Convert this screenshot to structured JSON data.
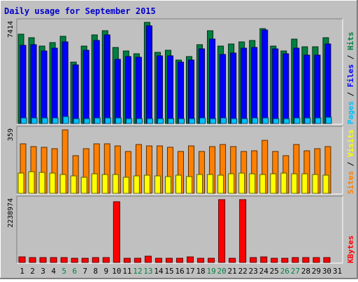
{
  "title": "Daily usage for September 2015",
  "colors": {
    "frame_bg": "#c0c0c0",
    "title": "#0000cc",
    "hits": "#008040",
    "files": "#0000ff",
    "pages": "#00c0ff",
    "visits": "#ff8000",
    "sites": "#ffff00",
    "kbytes": "#ff0000",
    "weekend_day": "#008040",
    "weekday": "#000000"
  },
  "chart_data": [
    {
      "type": "bar",
      "panel": "hits-files-pages",
      "title": "Pages / Files / Hits",
      "ylabel_parts": [
        "Pages",
        "Files",
        "Hits"
      ],
      "max_label": "7414",
      "ylim": [
        0,
        7414
      ],
      "categories": [
        "1",
        "2",
        "3",
        "4",
        "5",
        "6",
        "7",
        "8",
        "9",
        "10",
        "11",
        "12",
        "13",
        "14",
        "15",
        "16",
        "17",
        "18",
        "19",
        "20",
        "21",
        "22",
        "23",
        "24",
        "25",
        "26",
        "27",
        "28",
        "29",
        "30",
        "31"
      ],
      "series": [
        {
          "name": "Hits",
          "values": [
            6520,
            6300,
            5650,
            5920,
            6400,
            4480,
            5700,
            6470,
            6800,
            5550,
            5300,
            5100,
            7414,
            5200,
            5350,
            4650,
            4900,
            5800,
            6780,
            5700,
            5850,
            6000,
            6100,
            6950,
            5700,
            5300,
            6200,
            5620,
            5620,
            6310,
            0
          ]
        },
        {
          "name": "Files",
          "values": [
            5730,
            5760,
            5320,
            5520,
            5960,
            4290,
            5360,
            6060,
            6500,
            4720,
            4900,
            4850,
            7160,
            4960,
            4940,
            4500,
            4630,
            5460,
            6180,
            5050,
            5140,
            5500,
            5560,
            6870,
            5450,
            5090,
            5540,
            5030,
            5000,
            5850,
            0
          ]
        },
        {
          "name": "Pages",
          "values": [
            400,
            420,
            410,
            400,
            500,
            380,
            380,
            410,
            410,
            390,
            350,
            350,
            380,
            370,
            360,
            340,
            380,
            410,
            380,
            400,
            370,
            380,
            390,
            420,
            380,
            360,
            420,
            400,
            410,
            440,
            0
          ]
        }
      ]
    },
    {
      "type": "bar",
      "panel": "visits-sites",
      "title": "Sites / Visits",
      "ylabel_parts": [
        "Sites",
        "Visits"
      ],
      "max_label": "359",
      "ylim": [
        0,
        359
      ],
      "categories": [
        "1",
        "2",
        "3",
        "4",
        "5",
        "6",
        "7",
        "8",
        "9",
        "10",
        "11",
        "12",
        "13",
        "14",
        "15",
        "16",
        "17",
        "18",
        "19",
        "20",
        "21",
        "22",
        "23",
        "24",
        "25",
        "26",
        "27",
        "28",
        "29",
        "30",
        "31"
      ],
      "series": [
        {
          "name": "Visits",
          "values": [
            281,
            264,
            262,
            254,
            359,
            214,
            254,
            281,
            281,
            270,
            236,
            276,
            268,
            270,
            262,
            236,
            270,
            236,
            264,
            275,
            264,
            236,
            240,
            300,
            236,
            214,
            276,
            240,
            254,
            266,
            0
          ]
        },
        {
          "name": "Sites",
          "values": [
            116,
            124,
            120,
            116,
            108,
            100,
            90,
            112,
            108,
            106,
            92,
            100,
            102,
            100,
            94,
            102,
            96,
            108,
            108,
            102,
            110,
            114,
            112,
            108,
            112,
            114,
            110,
            112,
            108,
            104,
            0
          ]
        }
      ]
    },
    {
      "type": "bar",
      "panel": "kbytes",
      "title": "KBytes",
      "max_label": "2238974",
      "ylim": [
        0,
        2238974
      ],
      "categories": [
        "1",
        "2",
        "3",
        "4",
        "5",
        "6",
        "7",
        "8",
        "9",
        "10",
        "11",
        "12",
        "13",
        "14",
        "15",
        "16",
        "17",
        "18",
        "19",
        "20",
        "21",
        "22",
        "23",
        "24",
        "25",
        "26",
        "27",
        "28",
        "29",
        "30",
        "31"
      ],
      "series": [
        {
          "name": "KBytes",
          "values": [
            190000,
            165000,
            165000,
            175000,
            165000,
            150000,
            155000,
            175000,
            175000,
            2170000,
            145000,
            150000,
            225000,
            150000,
            150000,
            160000,
            190000,
            145000,
            155000,
            2238974,
            140000,
            2238974,
            165000,
            190000,
            160000,
            145000,
            180000,
            175000,
            165000,
            180000,
            0
          ]
        }
      ]
    }
  ],
  "days": [
    {
      "label": "1",
      "weekend": false
    },
    {
      "label": "2",
      "weekend": false
    },
    {
      "label": "3",
      "weekend": false
    },
    {
      "label": "4",
      "weekend": false
    },
    {
      "label": "5",
      "weekend": true
    },
    {
      "label": "6",
      "weekend": true
    },
    {
      "label": "7",
      "weekend": false
    },
    {
      "label": "8",
      "weekend": false
    },
    {
      "label": "9",
      "weekend": false
    },
    {
      "label": "10",
      "weekend": false
    },
    {
      "label": "11",
      "weekend": false
    },
    {
      "label": "12",
      "weekend": true
    },
    {
      "label": "13",
      "weekend": true
    },
    {
      "label": "14",
      "weekend": false
    },
    {
      "label": "15",
      "weekend": false
    },
    {
      "label": "16",
      "weekend": false
    },
    {
      "label": "17",
      "weekend": false
    },
    {
      "label": "18",
      "weekend": false
    },
    {
      "label": "19",
      "weekend": true
    },
    {
      "label": "20",
      "weekend": true
    },
    {
      "label": "21",
      "weekend": false
    },
    {
      "label": "22",
      "weekend": false
    },
    {
      "label": "23",
      "weekend": false
    },
    {
      "label": "24",
      "weekend": false
    },
    {
      "label": "25",
      "weekend": false
    },
    {
      "label": "26",
      "weekend": true
    },
    {
      "label": "27",
      "weekend": true
    },
    {
      "label": "28",
      "weekend": false
    },
    {
      "label": "29",
      "weekend": false
    },
    {
      "label": "30",
      "weekend": false
    },
    {
      "label": "31",
      "weekend": false
    }
  ]
}
